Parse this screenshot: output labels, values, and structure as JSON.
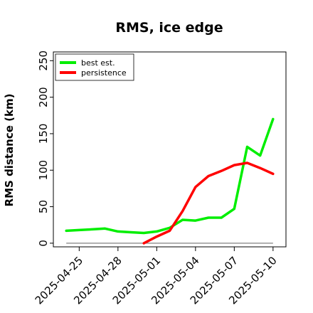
{
  "chart_data": {
    "type": "line",
    "title": "RMS, ice edge",
    "ylabel": "RMS distance (km)",
    "xlabel": "",
    "ylim": [
      -5,
      262
    ],
    "yticks": [
      0,
      50,
      100,
      150,
      200,
      250
    ],
    "xlim": [
      "2025-04-23",
      "2025-05-11"
    ],
    "xticks": [
      "2025-04-25",
      "2025-04-28",
      "2025-05-01",
      "2025-05-04",
      "2025-05-07",
      "2025-05-10"
    ],
    "reference_line": {
      "y": 0,
      "from": "2025-04-24",
      "to": "2025-05-10",
      "color": "#808080"
    },
    "legend": {
      "position": "top-left"
    },
    "series": [
      {
        "name": "best est.",
        "color": "#00ee00",
        "points": [
          [
            "2025-04-24",
            17
          ],
          [
            "2025-04-25",
            18
          ],
          [
            "2025-04-26",
            19
          ],
          [
            "2025-04-27",
            20
          ],
          [
            "2025-04-28",
            16
          ],
          [
            "2025-04-29",
            15
          ],
          [
            "2025-04-30",
            14
          ],
          [
            "2025-05-01",
            16
          ],
          [
            "2025-05-02",
            21
          ],
          [
            "2025-05-03",
            32
          ],
          [
            "2025-05-04",
            31
          ],
          [
            "2025-05-05",
            35
          ],
          [
            "2025-05-06",
            35
          ],
          [
            "2025-05-07",
            47
          ],
          [
            "2025-05-08",
            132
          ],
          [
            "2025-05-09",
            120
          ],
          [
            "2025-05-10",
            170
          ]
        ]
      },
      {
        "name": "persistence",
        "color": "#ff0000",
        "points": [
          [
            "2025-04-30",
            0
          ],
          [
            "2025-05-01",
            9
          ],
          [
            "2025-05-02",
            17
          ],
          [
            "2025-05-03",
            44
          ],
          [
            "2025-05-04",
            77
          ],
          [
            "2025-05-05",
            92
          ],
          [
            "2025-05-06",
            99
          ],
          [
            "2025-05-07",
            107
          ],
          [
            "2025-05-08",
            110
          ],
          [
            "2025-05-09",
            103
          ],
          [
            "2025-05-10",
            95
          ]
        ]
      }
    ]
  }
}
